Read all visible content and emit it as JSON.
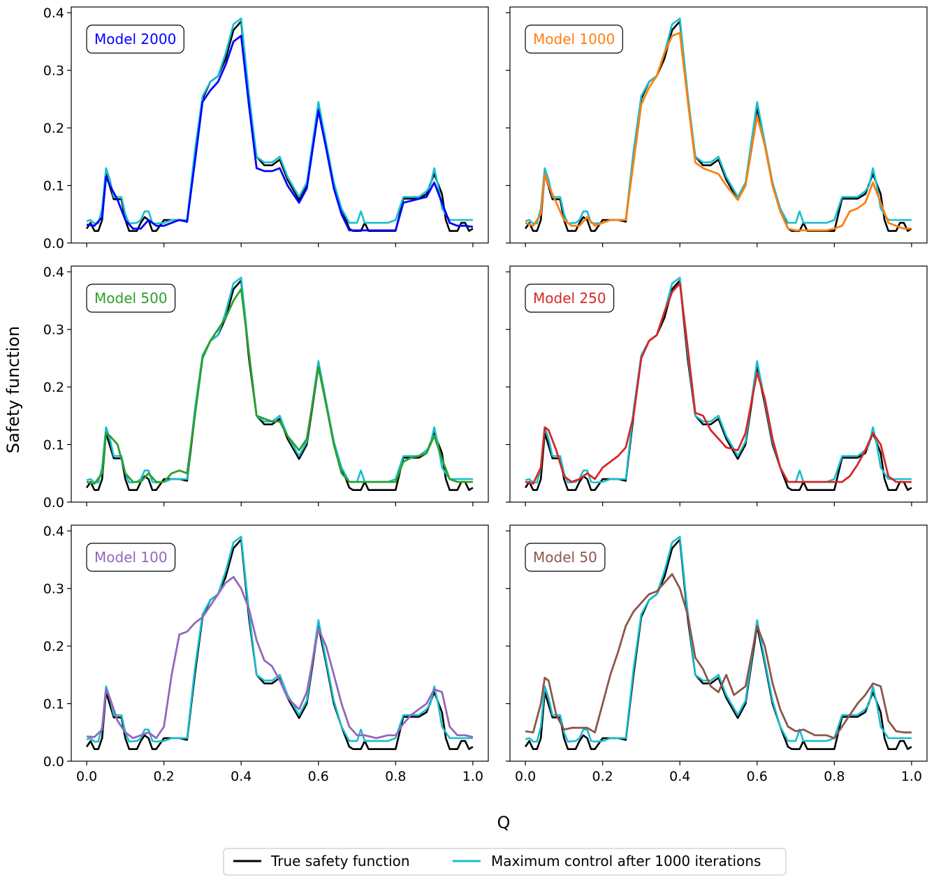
{
  "chart_data": {
    "type": "line",
    "xlabel": "Q",
    "ylabel": "Safety function",
    "xlim": [
      -0.04,
      1.04
    ],
    "ylim": [
      0,
      0.41
    ],
    "xticks": [
      0.0,
      0.2,
      0.4,
      0.6,
      0.8,
      1.0
    ],
    "xtick_labels": [
      "0.0",
      "0.2",
      "0.4",
      "0.6",
      "0.8",
      "1.0"
    ],
    "yticks": [
      0.0,
      0.1,
      0.2,
      0.3,
      0.4
    ],
    "ytick_labels": [
      "0.0",
      "0.1",
      "0.2",
      "0.3",
      "0.4"
    ],
    "legend": {
      "placement": "bottom-center",
      "entries": [
        {
          "label": "True safety function",
          "color": "#000000"
        },
        {
          "label": "Maximum control after 1000 iterations",
          "color": "#17becf"
        }
      ]
    },
    "true_series": {
      "name": "True safety function",
      "color": "#000000",
      "x": [
        0.0,
        0.01,
        0.02,
        0.03,
        0.04,
        0.05,
        0.07,
        0.09,
        0.1,
        0.11,
        0.13,
        0.14,
        0.15,
        0.16,
        0.17,
        0.18,
        0.2,
        0.22,
        0.24,
        0.26,
        0.28,
        0.3,
        0.32,
        0.34,
        0.36,
        0.38,
        0.4,
        0.42,
        0.44,
        0.46,
        0.48,
        0.5,
        0.52,
        0.55,
        0.57,
        0.6,
        0.62,
        0.64,
        0.66,
        0.68,
        0.69,
        0.7,
        0.71,
        0.72,
        0.73,
        0.75,
        0.78,
        0.8,
        0.82,
        0.84,
        0.86,
        0.88,
        0.9,
        0.92,
        0.93,
        0.94,
        0.96,
        0.97,
        0.98,
        0.99,
        1.0
      ],
      "y": [
        0.025,
        0.035,
        0.021,
        0.021,
        0.04,
        0.12,
        0.076,
        0.076,
        0.04,
        0.021,
        0.021,
        0.035,
        0.045,
        0.04,
        0.021,
        0.021,
        0.04,
        0.04,
        0.04,
        0.037,
        0.15,
        0.25,
        0.28,
        0.29,
        0.32,
        0.37,
        0.385,
        0.25,
        0.15,
        0.135,
        0.135,
        0.145,
        0.11,
        0.075,
        0.1,
        0.235,
        0.17,
        0.1,
        0.06,
        0.025,
        0.021,
        0.021,
        0.021,
        0.035,
        0.021,
        0.021,
        0.021,
        0.021,
        0.077,
        0.077,
        0.077,
        0.085,
        0.12,
        0.085,
        0.04,
        0.021,
        0.021,
        0.035,
        0.035,
        0.021,
        0.025
      ]
    },
    "control_series": {
      "name": "Maximum control after 1000 iterations",
      "color": "#17becf",
      "x": [
        0.0,
        0.01,
        0.02,
        0.03,
        0.04,
        0.05,
        0.06,
        0.07,
        0.09,
        0.1,
        0.11,
        0.13,
        0.14,
        0.15,
        0.16,
        0.17,
        0.18,
        0.2,
        0.22,
        0.24,
        0.26,
        0.28,
        0.3,
        0.32,
        0.34,
        0.36,
        0.38,
        0.4,
        0.42,
        0.44,
        0.46,
        0.48,
        0.5,
        0.52,
        0.55,
        0.57,
        0.6,
        0.62,
        0.64,
        0.66,
        0.68,
        0.7,
        0.71,
        0.72,
        0.73,
        0.75,
        0.78,
        0.8,
        0.82,
        0.84,
        0.86,
        0.88,
        0.89,
        0.9,
        0.91,
        0.92,
        0.94,
        0.96,
        0.98,
        1.0
      ],
      "y": [
        0.038,
        0.04,
        0.034,
        0.034,
        0.06,
        0.13,
        0.11,
        0.08,
        0.08,
        0.05,
        0.034,
        0.035,
        0.04,
        0.055,
        0.055,
        0.035,
        0.034,
        0.035,
        0.04,
        0.04,
        0.04,
        0.16,
        0.255,
        0.28,
        0.29,
        0.33,
        0.38,
        0.39,
        0.26,
        0.15,
        0.14,
        0.14,
        0.15,
        0.115,
        0.08,
        0.105,
        0.245,
        0.175,
        0.105,
        0.06,
        0.035,
        0.035,
        0.055,
        0.035,
        0.035,
        0.035,
        0.035,
        0.04,
        0.08,
        0.08,
        0.08,
        0.09,
        0.1,
        0.13,
        0.1,
        0.06,
        0.04,
        0.04,
        0.04,
        0.04
      ]
    },
    "panels": [
      {
        "badge": "Model 2000",
        "color": "#0000ff",
        "series_name": "Model 2000",
        "x": [
          0.0,
          0.02,
          0.04,
          0.05,
          0.06,
          0.08,
          0.1,
          0.12,
          0.14,
          0.16,
          0.18,
          0.2,
          0.22,
          0.24,
          0.26,
          0.28,
          0.3,
          0.32,
          0.34,
          0.36,
          0.38,
          0.4,
          0.42,
          0.44,
          0.46,
          0.48,
          0.5,
          0.52,
          0.55,
          0.57,
          0.6,
          0.62,
          0.64,
          0.66,
          0.68,
          0.7,
          0.72,
          0.75,
          0.78,
          0.8,
          0.82,
          0.85,
          0.88,
          0.9,
          0.92,
          0.94,
          0.96,
          0.98,
          1.0
        ],
        "y": [
          0.032,
          0.03,
          0.045,
          0.115,
          0.1,
          0.075,
          0.04,
          0.025,
          0.025,
          0.04,
          0.03,
          0.03,
          0.035,
          0.04,
          0.037,
          0.14,
          0.245,
          0.265,
          0.28,
          0.31,
          0.35,
          0.36,
          0.24,
          0.13,
          0.125,
          0.125,
          0.13,
          0.1,
          0.07,
          0.095,
          0.23,
          0.165,
          0.095,
          0.05,
          0.022,
          0.022,
          0.022,
          0.022,
          0.022,
          0.022,
          0.07,
          0.075,
          0.08,
          0.105,
          0.07,
          0.035,
          0.03,
          0.03,
          0.028
        ]
      },
      {
        "badge": "Model 1000",
        "color": "#ff7f0e",
        "series_name": "Model 1000",
        "x": [
          0.0,
          0.02,
          0.04,
          0.05,
          0.06,
          0.08,
          0.1,
          0.12,
          0.14,
          0.16,
          0.18,
          0.2,
          0.22,
          0.24,
          0.26,
          0.28,
          0.3,
          0.32,
          0.34,
          0.36,
          0.38,
          0.4,
          0.42,
          0.44,
          0.46,
          0.48,
          0.5,
          0.52,
          0.55,
          0.57,
          0.6,
          0.62,
          0.64,
          0.66,
          0.68,
          0.7,
          0.72,
          0.75,
          0.78,
          0.8,
          0.82,
          0.84,
          0.86,
          0.88,
          0.9,
          0.92,
          0.94,
          0.96,
          0.98,
          1.0
        ],
        "y": [
          0.035,
          0.03,
          0.05,
          0.12,
          0.1,
          0.07,
          0.04,
          0.03,
          0.03,
          0.045,
          0.03,
          0.035,
          0.04,
          0.04,
          0.04,
          0.14,
          0.24,
          0.27,
          0.29,
          0.33,
          0.36,
          0.365,
          0.25,
          0.14,
          0.13,
          0.125,
          0.12,
          0.1,
          0.075,
          0.1,
          0.22,
          0.17,
          0.1,
          0.055,
          0.025,
          0.022,
          0.022,
          0.022,
          0.022,
          0.025,
          0.03,
          0.055,
          0.06,
          0.07,
          0.105,
          0.07,
          0.035,
          0.03,
          0.025,
          0.025
        ]
      },
      {
        "badge": "Model 500",
        "color": "#2ca02c",
        "series_name": "Model 500",
        "x": [
          0.0,
          0.02,
          0.04,
          0.05,
          0.06,
          0.08,
          0.1,
          0.12,
          0.14,
          0.16,
          0.18,
          0.2,
          0.22,
          0.24,
          0.26,
          0.28,
          0.3,
          0.32,
          0.34,
          0.36,
          0.38,
          0.4,
          0.42,
          0.44,
          0.46,
          0.48,
          0.5,
          0.52,
          0.55,
          0.57,
          0.6,
          0.62,
          0.64,
          0.66,
          0.68,
          0.7,
          0.72,
          0.75,
          0.78,
          0.8,
          0.82,
          0.84,
          0.86,
          0.88,
          0.9,
          0.92,
          0.94,
          0.96,
          0.98,
          1.0
        ],
        "y": [
          0.035,
          0.032,
          0.05,
          0.12,
          0.115,
          0.1,
          0.05,
          0.035,
          0.035,
          0.05,
          0.035,
          0.035,
          0.05,
          0.055,
          0.05,
          0.15,
          0.25,
          0.28,
          0.3,
          0.32,
          0.35,
          0.37,
          0.26,
          0.15,
          0.145,
          0.14,
          0.14,
          0.115,
          0.09,
          0.11,
          0.235,
          0.17,
          0.1,
          0.05,
          0.035,
          0.035,
          0.035,
          0.035,
          0.035,
          0.035,
          0.07,
          0.077,
          0.08,
          0.085,
          0.115,
          0.075,
          0.04,
          0.035,
          0.035,
          0.035
        ]
      },
      {
        "badge": "Model 250",
        "color": "#d62728",
        "series_name": "Model 250",
        "x": [
          0.0,
          0.02,
          0.04,
          0.05,
          0.06,
          0.08,
          0.1,
          0.12,
          0.14,
          0.16,
          0.18,
          0.2,
          0.22,
          0.24,
          0.26,
          0.28,
          0.3,
          0.32,
          0.34,
          0.36,
          0.38,
          0.4,
          0.42,
          0.44,
          0.46,
          0.48,
          0.5,
          0.52,
          0.55,
          0.57,
          0.6,
          0.62,
          0.64,
          0.66,
          0.68,
          0.7,
          0.72,
          0.75,
          0.78,
          0.8,
          0.82,
          0.84,
          0.86,
          0.88,
          0.9,
          0.92,
          0.94,
          0.96,
          0.98,
          1.0
        ],
        "y": [
          0.035,
          0.032,
          0.06,
          0.13,
          0.125,
          0.09,
          0.045,
          0.035,
          0.04,
          0.05,
          0.04,
          0.06,
          0.07,
          0.08,
          0.095,
          0.15,
          0.25,
          0.28,
          0.29,
          0.33,
          0.365,
          0.38,
          0.27,
          0.155,
          0.15,
          0.125,
          0.11,
          0.095,
          0.09,
          0.12,
          0.225,
          0.18,
          0.11,
          0.06,
          0.035,
          0.035,
          0.035,
          0.035,
          0.035,
          0.035,
          0.035,
          0.045,
          0.065,
          0.09,
          0.12,
          0.1,
          0.045,
          0.035,
          0.035,
          0.035
        ]
      },
      {
        "badge": "Model 100",
        "color": "#9467bd",
        "series_name": "Model 100",
        "x": [
          0.0,
          0.02,
          0.04,
          0.05,
          0.06,
          0.08,
          0.1,
          0.12,
          0.14,
          0.16,
          0.18,
          0.2,
          0.22,
          0.24,
          0.26,
          0.28,
          0.3,
          0.32,
          0.34,
          0.36,
          0.38,
          0.4,
          0.42,
          0.44,
          0.46,
          0.48,
          0.5,
          0.52,
          0.55,
          0.57,
          0.6,
          0.62,
          0.64,
          0.66,
          0.68,
          0.7,
          0.72,
          0.75,
          0.78,
          0.8,
          0.82,
          0.84,
          0.86,
          0.88,
          0.9,
          0.92,
          0.94,
          0.96,
          0.98,
          1.0
        ],
        "y": [
          0.043,
          0.042,
          0.055,
          0.125,
          0.11,
          0.07,
          0.05,
          0.04,
          0.045,
          0.05,
          0.04,
          0.06,
          0.15,
          0.22,
          0.225,
          0.24,
          0.25,
          0.27,
          0.29,
          0.31,
          0.32,
          0.3,
          0.265,
          0.21,
          0.175,
          0.165,
          0.14,
          0.11,
          0.09,
          0.12,
          0.23,
          0.2,
          0.15,
          0.1,
          0.06,
          0.045,
          0.045,
          0.04,
          0.045,
          0.045,
          0.065,
          0.08,
          0.09,
          0.1,
          0.125,
          0.12,
          0.06,
          0.045,
          0.045,
          0.042
        ]
      },
      {
        "badge": "Model 50",
        "color": "#8c564b",
        "series_name": "Model 50",
        "x": [
          0.0,
          0.02,
          0.04,
          0.05,
          0.06,
          0.08,
          0.1,
          0.12,
          0.14,
          0.16,
          0.18,
          0.2,
          0.22,
          0.24,
          0.26,
          0.28,
          0.3,
          0.32,
          0.34,
          0.36,
          0.38,
          0.4,
          0.42,
          0.44,
          0.46,
          0.48,
          0.5,
          0.52,
          0.54,
          0.57,
          0.6,
          0.62,
          0.64,
          0.66,
          0.68,
          0.7,
          0.72,
          0.75,
          0.78,
          0.8,
          0.82,
          0.84,
          0.86,
          0.88,
          0.9,
          0.92,
          0.94,
          0.96,
          0.98,
          1.0
        ],
        "y": [
          0.052,
          0.05,
          0.1,
          0.145,
          0.14,
          0.08,
          0.055,
          0.058,
          0.058,
          0.058,
          0.05,
          0.1,
          0.15,
          0.19,
          0.235,
          0.26,
          0.275,
          0.29,
          0.295,
          0.31,
          0.325,
          0.3,
          0.255,
          0.18,
          0.16,
          0.13,
          0.12,
          0.15,
          0.115,
          0.13,
          0.235,
          0.2,
          0.135,
          0.09,
          0.06,
          0.052,
          0.055,
          0.045,
          0.045,
          0.04,
          0.06,
          0.08,
          0.1,
          0.115,
          0.135,
          0.13,
          0.07,
          0.052,
          0.05,
          0.05
        ]
      }
    ]
  }
}
